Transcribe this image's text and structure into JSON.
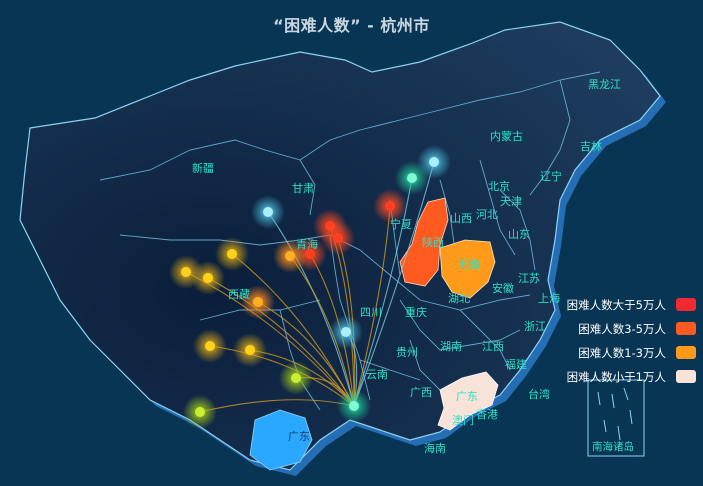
{
  "title": "“困难人数” - 杭州市",
  "legend": [
    {
      "label": "困难人数大于5万人",
      "color": "#f02a30"
    },
    {
      "label": "困难人数3-5万人",
      "color": "#ff5a1f"
    },
    {
      "label": "困难人数1-3万人",
      "color": "#ff9a1a"
    },
    {
      "label": "困难人数小于1万人",
      "color": "#f7e3d8"
    }
  ],
  "provinces": {
    "heilongjiang": "黑龙江",
    "jilin": "吉林",
    "liaoning": "辽宁",
    "neimenggu": "内蒙古",
    "beijing": "北京",
    "tianjin": "天津",
    "hebei": "河北",
    "shandong": "山东",
    "shanxi": "山西",
    "xinjiang": "新疆",
    "gansu": "甘肃",
    "ningxia": "宁夏",
    "qinghai": "青海",
    "shaanxi": "陕西",
    "henan": "河南",
    "jiangsu": "江苏",
    "anhui": "安徽",
    "shanghai": "上海",
    "hubei": "湖北",
    "zhejiang": "浙江",
    "xizang": "西藏",
    "sichuan": "四川",
    "chongqing": "重庆",
    "hunan": "湖南",
    "jiangxi": "江西",
    "fujian": "福建",
    "guizhou": "贵州",
    "yunnan": "云南",
    "guangxi": "广西",
    "guangdong": "广东",
    "taiwan": "台湾",
    "xianggang": "香港",
    "aomen": "澳门",
    "hainan": "海南",
    "nanhai": "南海诸岛",
    "guangdong_dup": "广东"
  },
  "colors": {
    "background": "#073553",
    "land": "#142e4d",
    "border": "#6fb6d8",
    "label": "#2ee0c6",
    "hot": "#ff5a1f",
    "warm": "#ff9a1a",
    "light": "#f7e3d8",
    "cyan": "#2aa8ff"
  }
}
